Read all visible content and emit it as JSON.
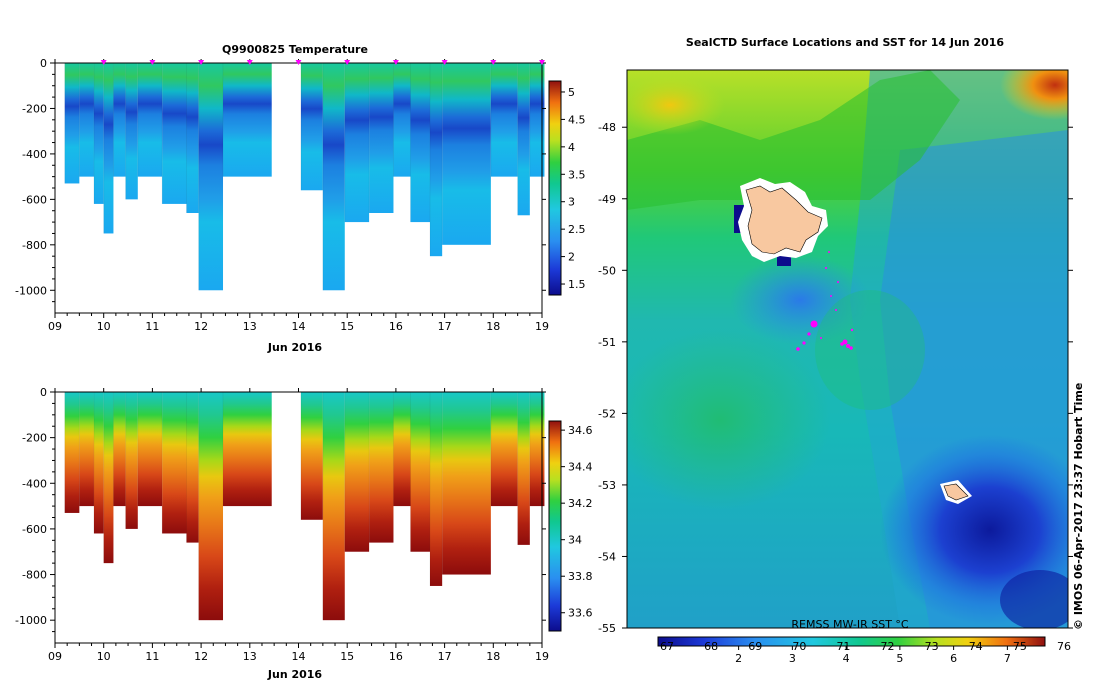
{
  "chart_data": [
    {
      "type": "heatmap",
      "title": "Q9900825  Temperature",
      "xlabel": "Jun 2016",
      "ylabel": "",
      "xlim": [
        9,
        19
      ],
      "ylim": [
        -1100,
        0
      ],
      "x_ticks": [
        "09",
        "10",
        "11",
        "12",
        "13",
        "14",
        "15",
        "16",
        "17",
        "18",
        "19"
      ],
      "y_ticks": [
        "0",
        "-200",
        "-400",
        "-600",
        "-800",
        "-1000"
      ],
      "colorbar": {
        "min": 1.3,
        "max": 5.2,
        "ticks": [
          "1.5",
          "2",
          "2.5",
          "3",
          "3.5",
          "4",
          "4.5",
          "5"
        ]
      },
      "profile_markers_x": [
        10,
        11,
        12,
        13,
        14,
        15,
        16,
        17,
        18,
        19
      ],
      "profiles": [
        {
          "x0": 9.2,
          "x1": 9.5,
          "max_depth": 530
        },
        {
          "x0": 9.5,
          "x1": 9.8,
          "max_depth": 500
        },
        {
          "x0": 9.8,
          "x1": 10.0,
          "max_depth": 620
        },
        {
          "x0": 10.0,
          "x1": 10.2,
          "max_depth": 750
        },
        {
          "x0": 10.2,
          "x1": 10.45,
          "max_depth": 500
        },
        {
          "x0": 10.45,
          "x1": 10.7,
          "max_depth": 600
        },
        {
          "x0": 10.7,
          "x1": 11.2,
          "max_depth": 500
        },
        {
          "x0": 11.2,
          "x1": 11.7,
          "max_depth": 620
        },
        {
          "x0": 11.7,
          "x1": 11.95,
          "max_depth": 660
        },
        {
          "x0": 11.95,
          "x1": 12.45,
          "max_depth": 1000
        },
        {
          "x0": 12.45,
          "x1": 13.45,
          "max_depth": 500
        },
        {
          "x0": 14.05,
          "x1": 14.5,
          "max_depth": 560
        },
        {
          "x0": 14.5,
          "x1": 14.95,
          "max_depth": 1000
        },
        {
          "x0": 14.95,
          "x1": 15.45,
          "max_depth": 700
        },
        {
          "x0": 15.45,
          "x1": 15.95,
          "max_depth": 660
        },
        {
          "x0": 15.95,
          "x1": 16.3,
          "max_depth": 500
        },
        {
          "x0": 16.3,
          "x1": 16.7,
          "max_depth": 700
        },
        {
          "x0": 16.7,
          "x1": 16.95,
          "max_depth": 850
        },
        {
          "x0": 16.95,
          "x1": 17.95,
          "max_depth": 800
        },
        {
          "x0": 17.95,
          "x1": 18.5,
          "max_depth": 500
        },
        {
          "x0": 18.5,
          "x1": 18.75,
          "max_depth": 670
        },
        {
          "x0": 18.75,
          "x1": 19.05,
          "max_depth": 500
        }
      ]
    },
    {
      "type": "heatmap",
      "title": "",
      "xlabel": "Jun 2016",
      "ylabel": "",
      "xlim": [
        9,
        19
      ],
      "ylim": [
        -1100,
        0
      ],
      "x_ticks": [
        "09",
        "10",
        "11",
        "12",
        "13",
        "14",
        "15",
        "16",
        "17",
        "18",
        "19"
      ],
      "y_ticks": [
        "0",
        "-200",
        "-400",
        "-600",
        "-800",
        "-1000"
      ],
      "colorbar": {
        "min": 33.5,
        "max": 34.65,
        "ticks": [
          "33.6",
          "33.8",
          "34",
          "34.2",
          "34.4",
          "34.6"
        ]
      }
    },
    {
      "type": "heatmap",
      "title": "SealCTD Surface Locations and SST for 14 Jun 2016",
      "y_ticks": [
        "-48",
        "-49",
        "-50",
        "-51",
        "-52",
        "-53",
        "-54",
        "-55"
      ],
      "ylim": [
        -55,
        -47.2
      ],
      "colorbar": {
        "label": "REMSS MW-IR SST °C",
        "min": 0.5,
        "max": 7.7,
        "ticks_top": [
          "67",
          "68",
          "69",
          "70",
          "71",
          "72",
          "73",
          "74",
          "75",
          "76"
        ],
        "ticks_bottom": [
          "2",
          "3",
          "4",
          "5",
          "6",
          "7"
        ]
      }
    }
  ],
  "credit": "© IMOS 06-Apr-2017 23:37 Hobart Time"
}
